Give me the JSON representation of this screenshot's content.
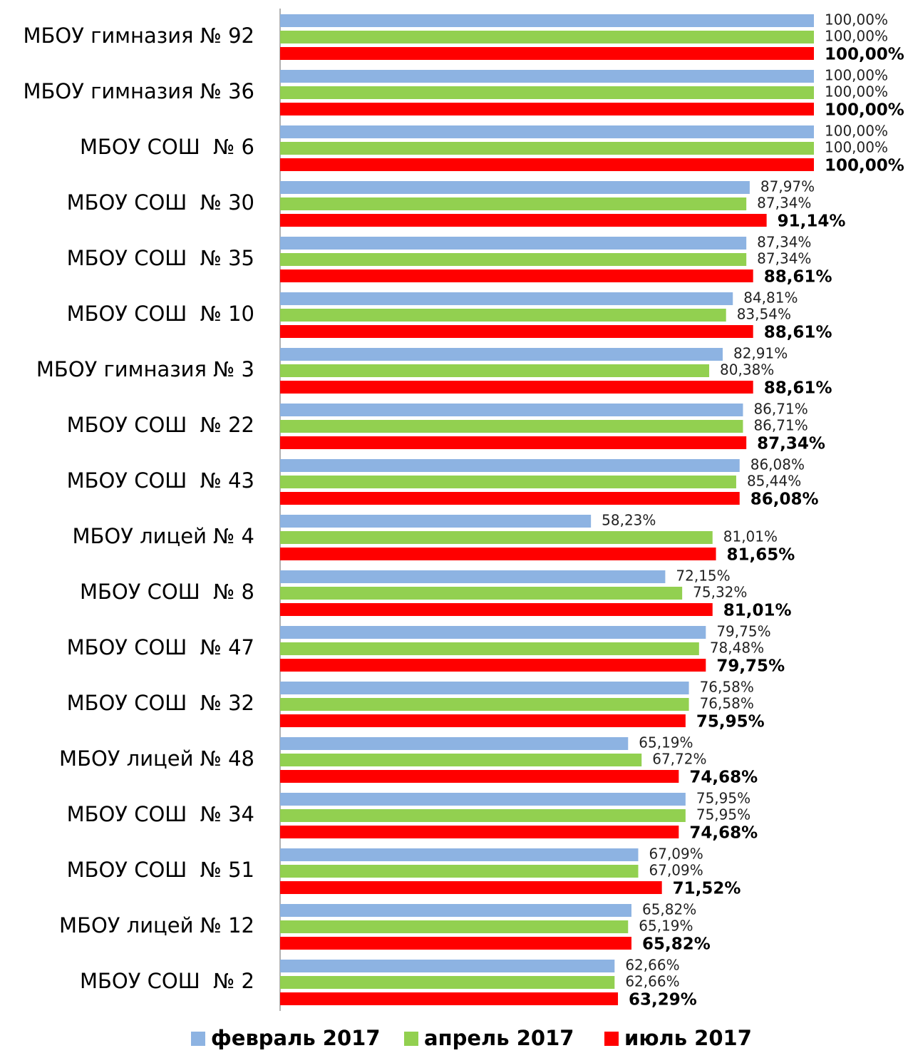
{
  "chart_data": {
    "type": "hbar",
    "categories": [
      "МБОУ гимназия № 92",
      "МБОУ гимназия № 36",
      "МБОУ СОШ  № 6",
      "МБОУ СОШ  № 30",
      "МБОУ СОШ  № 35",
      "МБОУ СОШ  № 10",
      "МБОУ гимназия № 3",
      "МБОУ СОШ  № 22",
      "МБОУ СОШ  № 43",
      "МБОУ лицей № 4",
      "МБОУ СОШ  № 8",
      "МБОУ СОШ  № 47",
      "МБОУ СОШ  № 32",
      "МБОУ лицей № 48",
      "МБОУ СОШ  № 34",
      "МБОУ СОШ  № 51",
      "МБОУ лицей № 12",
      "МБОУ СОШ  № 2"
    ],
    "xlim": [
      0,
      100
    ],
    "legend": "bottom",
    "series": [
      {
        "name": "февраль 2017",
        "color": "#8db3e2",
        "values": [
          100,
          100,
          100,
          87.97,
          87.34,
          84.81,
          82.91,
          86.71,
          86.08,
          58.23,
          72.15,
          79.75,
          76.58,
          65.19,
          75.95,
          67.09,
          65.82,
          62.66
        ],
        "value_labels": [
          "100,00%",
          "100,00%",
          "100,00%",
          "87,97%",
          "87,34%",
          "84,81%",
          "82,91%",
          "86,71%",
          "86,08%",
          "58,23%",
          "72,15%",
          "79,75%",
          "76,58%",
          "65,19%",
          "75,95%",
          "67,09%",
          "65,82%",
          "62,66%"
        ]
      },
      {
        "name": "апрель 2017",
        "color": "#92d050",
        "values": [
          100,
          100,
          100,
          87.34,
          87.34,
          83.54,
          80.38,
          86.71,
          85.44,
          81.01,
          75.32,
          78.48,
          76.58,
          67.72,
          75.95,
          67.09,
          65.19,
          62.66
        ],
        "value_labels": [
          "100,00%",
          "100,00%",
          "100,00%",
          "87,34%",
          "87,34%",
          "83,54%",
          "80,38%",
          "86,71%",
          "85,44%",
          "81,01%",
          "75,32%",
          "78,48%",
          "76,58%",
          "67,72%",
          "75,95%",
          "67,09%",
          "65,19%",
          "62,66%"
        ]
      },
      {
        "name": "июль 2017",
        "color": "#ff0000",
        "values": [
          100,
          100,
          100,
          91.14,
          88.61,
          88.61,
          88.61,
          87.34,
          86.08,
          81.65,
          81.01,
          79.75,
          75.95,
          74.68,
          74.68,
          71.52,
          65.82,
          63.29
        ],
        "value_labels": [
          "100,00%",
          "100,00%",
          "100,00%",
          "91,14%",
          "88,61%",
          "88,61%",
          "88,61%",
          "87,34%",
          "86,08%",
          "81,65%",
          "81,01%",
          "79,75%",
          "75,95%",
          "74,68%",
          "74,68%",
          "71,52%",
          "65,82%",
          "63,29%"
        ]
      }
    ]
  }
}
